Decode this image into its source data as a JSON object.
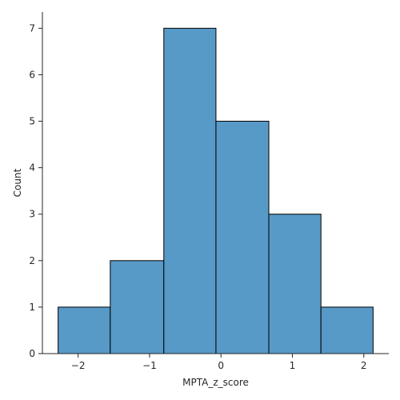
{
  "chart_data": {
    "type": "bar",
    "title": "",
    "xlabel": "MPTA_z_score",
    "ylabel": "Count",
    "bin_edges": [
      -2.28,
      -1.55,
      -0.8,
      -0.07,
      0.67,
      1.4,
      2.13
    ],
    "values": [
      1,
      2,
      7,
      5,
      3,
      1
    ],
    "xlim": [
      -2.5,
      2.35
    ],
    "ylim": [
      0,
      7.35
    ],
    "x_ticks": [
      -2,
      -1,
      0,
      1,
      2
    ],
    "x_tick_labels": [
      "−2",
      "−1",
      "0",
      "1",
      "2"
    ],
    "y_ticks": [
      0,
      1,
      2,
      3,
      4,
      5,
      6,
      7
    ],
    "y_tick_labels": [
      "0",
      "1",
      "2",
      "3",
      "4",
      "5",
      "6",
      "7"
    ],
    "bar_color": "#5799c7",
    "edge_color": "#000000",
    "grid": false
  }
}
